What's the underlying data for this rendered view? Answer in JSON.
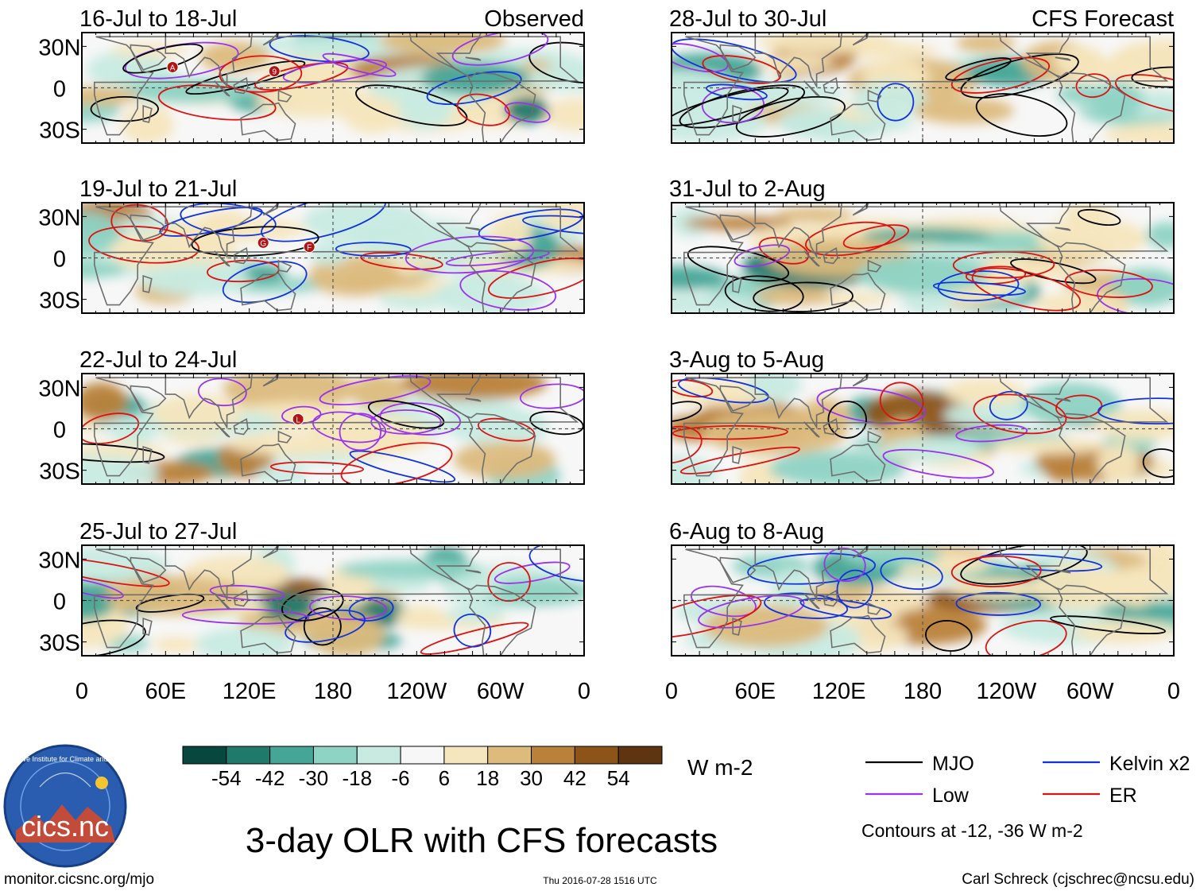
{
  "chart_data": {
    "type": "heatmap",
    "title": "3-day OLR with CFS forecasts",
    "units": "W m-2",
    "colorbar": {
      "ticks": [
        "-54",
        "-42",
        "-30",
        "-18",
        "-6",
        "6",
        "18",
        "30",
        "42",
        "54"
      ],
      "colors": [
        "#08473d",
        "#1f7a6c",
        "#45a597",
        "#8ed3c4",
        "#c8ebe1",
        "#f7f7f7",
        "#f6e6bd",
        "#dcbb7d",
        "#b9813a",
        "#8c5418",
        "#5e3510"
      ]
    },
    "x_ticks": [
      "0",
      "60E",
      "120E",
      "180",
      "120W",
      "60W",
      "0"
    ],
    "y_ticks": [
      "30N",
      "0",
      "30S"
    ],
    "xlim": [
      0,
      360
    ],
    "ylim": [
      -40,
      40
    ],
    "observed_label": "Observed",
    "forecast_label": "CFS Forecast",
    "panels": [
      {
        "title": "16-Jul to 18-Jul",
        "kind": "observed"
      },
      {
        "title": "19-Jul to 21-Jul",
        "kind": "observed"
      },
      {
        "title": "22-Jul to 24-Jul",
        "kind": "observed"
      },
      {
        "title": "25-Jul to 27-Jul",
        "kind": "observed"
      },
      {
        "title": "28-Jul to 30-Jul",
        "kind": "forecast"
      },
      {
        "title": "31-Jul to 2-Aug",
        "kind": "forecast"
      },
      {
        "title": "3-Aug to 5-Aug",
        "kind": "forecast"
      },
      {
        "title": "6-Aug to 8-Aug",
        "kind": "forecast"
      }
    ],
    "legend": [
      {
        "label": "MJO",
        "color": "#000000"
      },
      {
        "label": "Kelvin x2",
        "color": "#1133dd"
      },
      {
        "label": "Low",
        "color": "#9933ee"
      },
      {
        "label": "ER",
        "color": "#dd1111"
      }
    ],
    "contour_note": "Contours at -12, -36 W m-2",
    "storm_markers": [
      {
        "panel": 0,
        "letters": [
          "A",
          "9"
        ]
      },
      {
        "panel": 1,
        "letters": [
          "G",
          "F"
        ]
      },
      {
        "panel": 2,
        "letters": [
          "L"
        ]
      }
    ]
  },
  "footer": {
    "url": "monitor.cicsnc.org/mjo",
    "timestamp": "Thu 2016-07-28 1516 UTC",
    "author": "Carl Schreck (cjschrec@ncsu.edu)"
  },
  "logo": {
    "text": "cics.nc",
    "ring_text": "Cooperative Institute for Climate and Satellites"
  }
}
